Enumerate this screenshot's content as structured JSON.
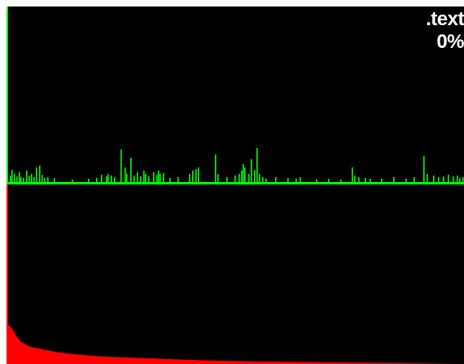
{
  "section": {
    "name": ".text",
    "percent": "0%"
  },
  "colors": {
    "background": "#000000",
    "top_trace": "#00ff00",
    "bottom_trace": "#ff0000",
    "text": "#ffffff",
    "frame_border": "#ffffff"
  },
  "icons": {
    "top_plot": "green-spike-histogram",
    "bottom_plot": "red-decay-histogram"
  }
}
